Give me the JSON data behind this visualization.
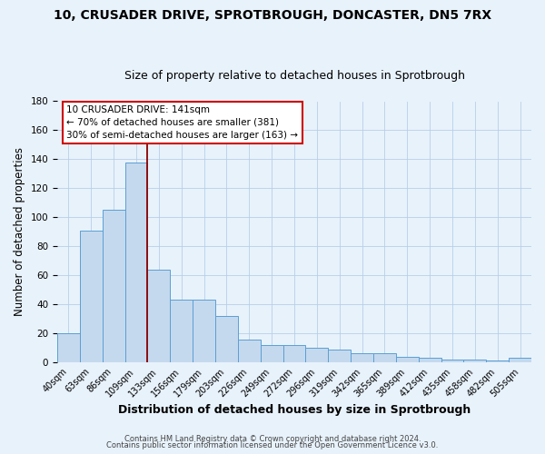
{
  "title": "10, CRUSADER DRIVE, SPROTBROUGH, DONCASTER, DN5 7RX",
  "subtitle": "Size of property relative to detached houses in Sprotbrough",
  "xlabel": "Distribution of detached houses by size in Sprotbrough",
  "ylabel": "Number of detached properties",
  "bar_labels": [
    "40sqm",
    "63sqm",
    "86sqm",
    "109sqm",
    "133sqm",
    "156sqm",
    "179sqm",
    "203sqm",
    "226sqm",
    "249sqm",
    "272sqm",
    "296sqm",
    "319sqm",
    "342sqm",
    "365sqm",
    "389sqm",
    "412sqm",
    "435sqm",
    "458sqm",
    "482sqm",
    "505sqm"
  ],
  "bar_heights": [
    20,
    91,
    105,
    138,
    64,
    43,
    43,
    32,
    16,
    12,
    12,
    10,
    9,
    6,
    6,
    4,
    3,
    2,
    2,
    1,
    3
  ],
  "bar_color": "#c5d9ee",
  "bar_edge_color": "#5a9fd4",
  "background_color": "#e8f2fb",
  "vline_x": 3.5,
  "vline_color": "#8b0000",
  "annotation_title": "10 CRUSADER DRIVE: 141sqm",
  "annotation_line1": "← 70% of detached houses are smaller (381)",
  "annotation_line2": "30% of semi-detached houses are larger (163) →",
  "annotation_box_color": "#ffffff",
  "annotation_box_edge": "#cc0000",
  "footer1": "Contains HM Land Registry data © Crown copyright and database right 2024.",
  "footer2": "Contains public sector information licensed under the Open Government Licence v3.0.",
  "ylim": [
    0,
    180
  ],
  "yticks": [
    0,
    20,
    40,
    60,
    80,
    100,
    120,
    140,
    160,
    180
  ],
  "title_fontsize": 10,
  "subtitle_fontsize": 9,
  "ylabel_fontsize": 8.5,
  "xlabel_fontsize": 9,
  "tick_fontsize": 7.5,
  "xtick_fontsize": 7,
  "footer_fontsize": 6,
  "annot_fontsize": 7.5
}
